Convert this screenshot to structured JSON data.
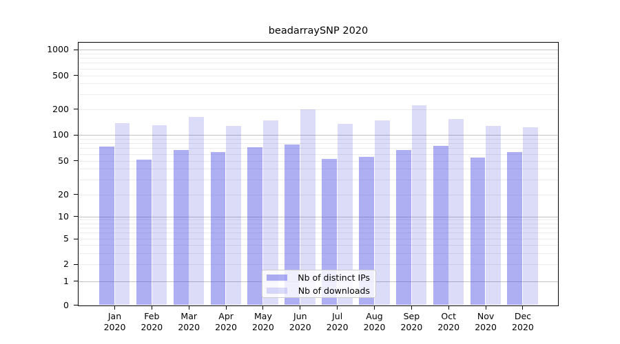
{
  "chart_data": {
    "type": "bar",
    "title": "beadarraySNP 2020",
    "categories": [
      "Jan",
      "Feb",
      "Mar",
      "Apr",
      "May",
      "Jun",
      "Jul",
      "Aug",
      "Sep",
      "Oct",
      "Nov",
      "Dec"
    ],
    "year_label": "2020",
    "series": [
      {
        "name": "Nb of distinct IPs",
        "values": [
          73,
          51,
          67,
          63,
          72,
          77,
          52,
          55,
          66,
          74,
          54,
          63
        ]
      },
      {
        "name": "Nb of downloads",
        "values": [
          136,
          130,
          161,
          128,
          147,
          198,
          135,
          148,
          220,
          152,
          126,
          122
        ]
      }
    ],
    "xlabel": "",
    "ylabel": "",
    "yticks": [
      0,
      1,
      2,
      5,
      10,
      20,
      50,
      100,
      200,
      500,
      1000
    ],
    "ylim": [
      0,
      1000
    ],
    "yscale": "symlog",
    "grid": true,
    "legend_position": "lower center",
    "colors": {
      "bar_base": "#4646E1",
      "distinct_ips_alpha": 0.44,
      "downloads_alpha": 0.19,
      "distinct_ips_hex": "#ADADF2",
      "downloads_hex": "#DCDCF9",
      "major_grid": "#C2C2C2",
      "minor_grid": "#EBEBEB",
      "axis": "#000000",
      "legend_border": "#CCCCCC"
    }
  }
}
